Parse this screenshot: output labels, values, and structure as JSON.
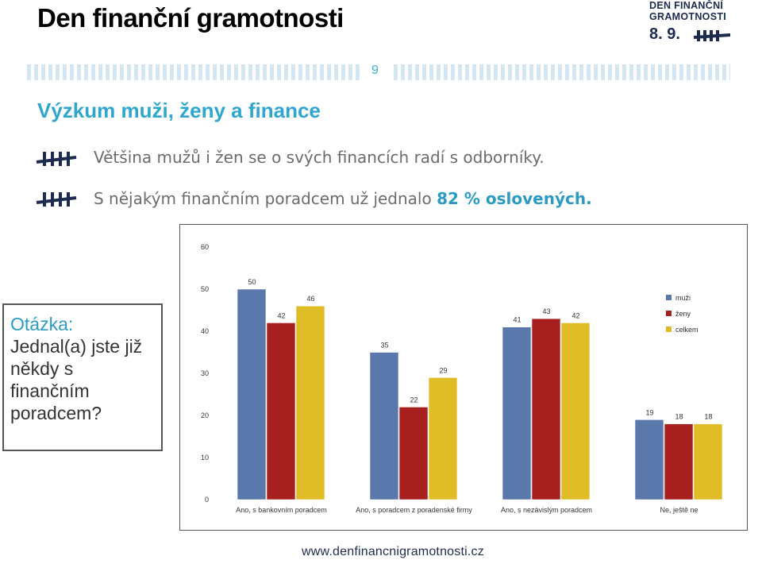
{
  "header": {
    "title": "Den finanční gramotnosti",
    "logo_line1": "DEN FINANČNÍ",
    "logo_line2": "GRAMOTNOSTI",
    "logo_date": "8. 9."
  },
  "page_number": "9",
  "subtitle": "Výzkum muži, ženy a finance",
  "bullets": [
    {
      "text": "Většina mužů i žen se o svých financích radí s odborníky."
    },
    {
      "text_before": "S nějakým finančním poradcem už jednalo ",
      "highlight": "82 % oslovených."
    }
  ],
  "question": {
    "label": "Otázka:",
    "text": "Jednal(a) jste již někdy s finančním poradcem?"
  },
  "footer": "www.denfinancnigramotnosti.cz",
  "colors": {
    "accent": "#2fa6cf",
    "muzi": "#5a78ac",
    "zeny": "#a81f1f",
    "celkem": "#e0bc26"
  },
  "chart_data": {
    "type": "bar",
    "categories": [
      "Ano, s bankovním poradcem",
      "Ano, s poradcem z poradenské firmy",
      "Ano, s nezávislým poradcem",
      "Ne, ještě ne"
    ],
    "series": [
      {
        "name": "muži",
        "values": [
          50,
          35,
          41,
          19
        ]
      },
      {
        "name": "ženy",
        "values": [
          42,
          22,
          43,
          18
        ]
      },
      {
        "name": "celkem",
        "values": [
          46,
          29,
          42,
          18
        ]
      }
    ],
    "ylim": [
      0,
      60
    ],
    "yticks": [
      "0",
      "10",
      "20",
      "30",
      "40",
      "50",
      "60"
    ],
    "legend": "right",
    "grid": false
  }
}
